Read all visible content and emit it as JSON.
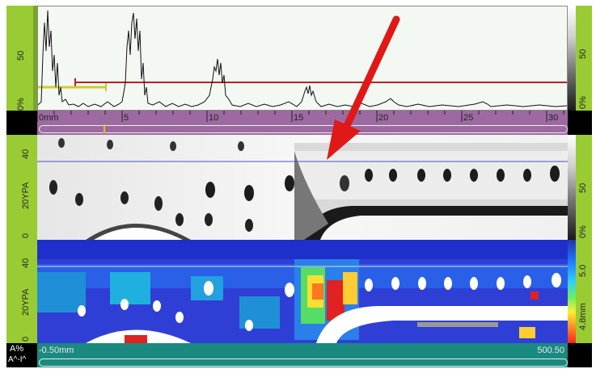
{
  "ascan": {
    "amp_labels": [
      "50",
      "0%"
    ],
    "right_labels": [
      "50",
      "0%"
    ]
  },
  "ruler": {
    "ticks": [
      "0mm",
      "5",
      "10",
      "15",
      "20",
      "25",
      "30"
    ]
  },
  "bscan": {
    "axis_labels": [
      "40",
      "20YPA",
      "0"
    ],
    "right_labels": [
      "50",
      "0%"
    ]
  },
  "cscan": {
    "axis_labels": [
      "40",
      "20YPA",
      "0"
    ],
    "right_labels": [
      "5.0",
      "4.8mm"
    ]
  },
  "footer": {
    "corner_top": "A%",
    "corner_bottom": "A^-I^",
    "start_value": "-0.50mm",
    "end_value": "500.50"
  },
  "colors": {
    "accent_green": "#99cc33",
    "ruler_purple": "#9c6aa0",
    "footer_teal": "#1a8a80",
    "gate_red": "#b22222",
    "gate_yellow": "#cccc33",
    "arrow_red": "#e01818"
  }
}
